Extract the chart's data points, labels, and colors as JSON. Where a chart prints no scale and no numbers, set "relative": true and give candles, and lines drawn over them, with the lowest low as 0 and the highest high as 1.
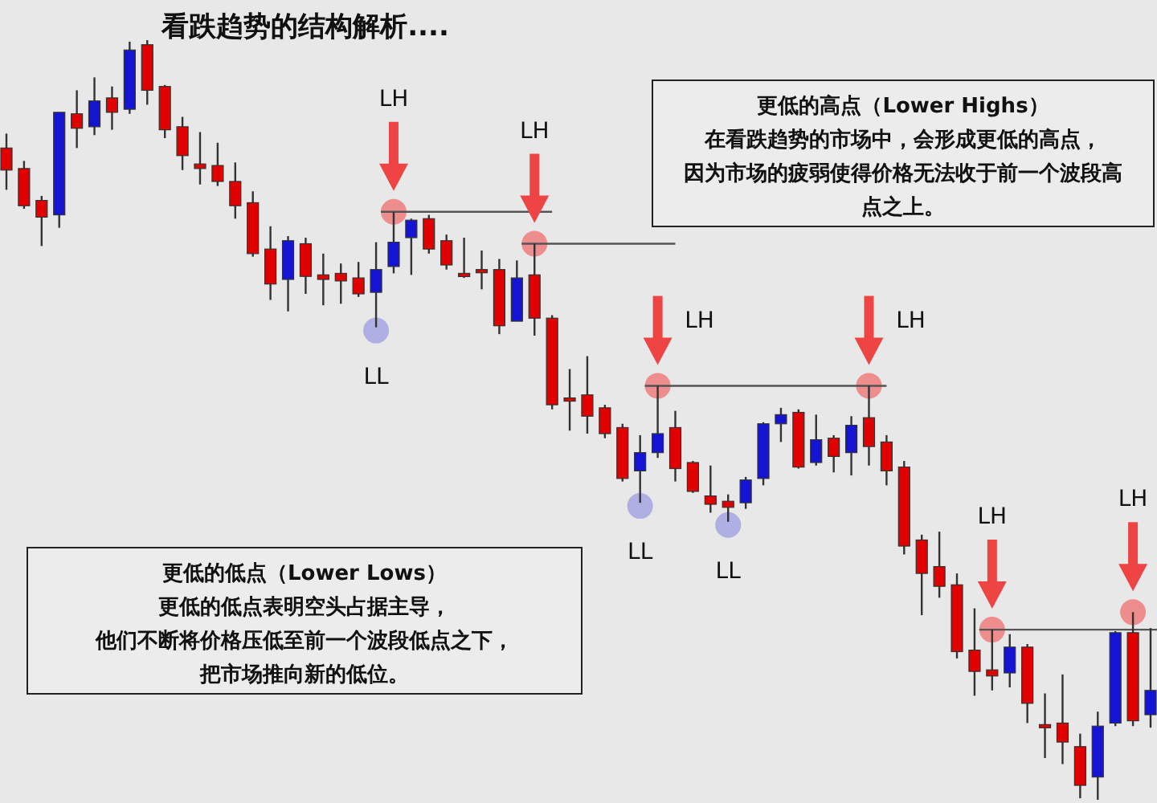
{
  "chart_data": {
    "type": "candlestick",
    "relative": true,
    "title": "看跌趋势的结构解析....",
    "categories": [
      null,
      null,
      null,
      null,
      null,
      null,
      null,
      null,
      null,
      null,
      null,
      null,
      null,
      null,
      null,
      null,
      null,
      null,
      null,
      null,
      null,
      null,
      null,
      null,
      null,
      null,
      null,
      null,
      null,
      null,
      null,
      null,
      null,
      null,
      null,
      null,
      null,
      null,
      null,
      null,
      null,
      null,
      null,
      null,
      null,
      null,
      null,
      null,
      null,
      null,
      null,
      null,
      null,
      null,
      null,
      null,
      null,
      null,
      null,
      null,
      null,
      null,
      null,
      null,
      null,
      null
    ],
    "ohlc": [
      [
        0.858,
        0.877,
        0.803,
        0.829
      ],
      [
        0.831,
        0.841,
        0.778,
        0.782
      ],
      [
        0.789,
        0.795,
        0.729,
        0.767
      ],
      [
        0.77,
        0.905,
        0.753,
        0.905
      ],
      [
        0.903,
        0.934,
        0.858,
        0.884
      ],
      [
        0.886,
        0.951,
        0.875,
        0.92
      ],
      [
        0.924,
        0.939,
        0.882,
        0.905
      ],
      [
        0.909,
        0.998,
        0.903,
        0.987
      ],
      [
        0.994,
        1.0,
        0.915,
        0.934
      ],
      [
        0.939,
        0.941,
        0.871,
        0.882
      ],
      [
        0.886,
        0.899,
        0.829,
        0.848
      ],
      [
        0.837,
        0.879,
        0.81,
        0.831
      ],
      [
        0.835,
        0.865,
        0.808,
        0.814
      ],
      [
        0.814,
        0.839,
        0.765,
        0.782
      ],
      [
        0.786,
        0.801,
        0.715,
        0.719
      ],
      [
        0.725,
        0.755,
        0.658,
        0.679
      ],
      [
        0.685,
        0.742,
        0.643,
        0.736
      ],
      [
        0.732,
        0.74,
        0.666,
        0.689
      ],
      [
        0.691,
        0.719,
        0.651,
        0.685
      ],
      [
        0.693,
        0.706,
        0.653,
        0.683
      ],
      [
        0.687,
        0.708,
        0.662,
        0.666
      ],
      [
        0.668,
        0.734,
        0.622,
        0.698
      ],
      [
        0.702,
        0.774,
        0.693,
        0.734
      ],
      [
        0.74,
        0.765,
        0.691,
        0.763
      ],
      [
        0.765,
        0.77,
        0.719,
        0.725
      ],
      [
        0.736,
        0.744,
        0.698,
        0.704
      ],
      [
        0.693,
        0.74,
        0.687,
        0.691
      ],
      [
        0.698,
        0.723,
        0.672,
        0.696
      ],
      [
        0.698,
        0.712,
        0.613,
        0.624
      ],
      [
        0.63,
        0.71,
        0.63,
        0.687
      ],
      [
        0.691,
        0.732,
        0.611,
        0.634
      ],
      [
        0.634,
        0.638,
        0.514,
        0.52
      ],
      [
        0.529,
        0.567,
        0.486,
        0.526
      ],
      [
        0.533,
        0.584,
        0.482,
        0.505
      ],
      [
        0.516,
        0.52,
        0.476,
        0.482
      ],
      [
        0.49,
        0.495,
        0.419,
        0.423
      ],
      [
        0.433,
        0.48,
        0.391,
        0.457
      ],
      [
        0.457,
        0.545,
        0.45,
        0.482
      ],
      [
        0.49,
        0.512,
        0.419,
        0.436
      ],
      [
        0.444,
        0.446,
        0.404,
        0.406
      ],
      [
        0.4,
        0.44,
        0.378,
        0.389
      ],
      [
        0.393,
        0.402,
        0.366,
        0.385
      ],
      [
        0.391,
        0.425,
        0.383,
        0.421
      ],
      [
        0.423,
        0.497,
        0.414,
        0.495
      ],
      [
        0.495,
        0.516,
        0.471,
        0.507
      ],
      [
        0.51,
        0.514,
        0.436,
        0.438
      ],
      [
        0.444,
        0.507,
        0.44,
        0.474
      ],
      [
        0.476,
        0.48,
        0.431,
        0.452
      ],
      [
        0.457,
        0.505,
        0.427,
        0.493
      ],
      [
        0.503,
        0.545,
        0.44,
        0.465
      ],
      [
        0.471,
        0.48,
        0.414,
        0.433
      ],
      [
        0.438,
        0.446,
        0.323,
        0.334
      ],
      [
        0.342,
        0.349,
        0.243,
        0.298
      ],
      [
        0.307,
        0.353,
        0.266,
        0.281
      ],
      [
        0.283,
        0.298,
        0.186,
        0.195
      ],
      [
        0.197,
        0.252,
        0.137,
        0.169
      ],
      [
        0.171,
        0.224,
        0.144,
        0.163
      ],
      [
        0.167,
        0.218,
        0.148,
        0.201
      ],
      [
        0.201,
        0.205,
        0.101,
        0.127
      ],
      [
        0.099,
        0.14,
        0.055,
        0.097
      ],
      [
        0.101,
        0.165,
        0.047,
        0.076
      ],
      [
        0.07,
        0.087,
        0.002,
        0.019
      ],
      [
        0.03,
        0.116,
        0.0,
        0.097
      ],
      [
        0.101,
        0.222,
        0.097,
        0.22
      ],
      [
        0.22,
        0.247,
        0.097,
        0.104
      ],
      [
        0.112,
        0.226,
        0.095,
        0.144
      ]
    ],
    "colors": [
      "#e00000",
      "#e00000",
      "#e00000",
      "#1414d2",
      "#e00000",
      "#1414d2",
      "#e00000",
      "#1414d2",
      "#e00000",
      "#e00000",
      "#e00000",
      "#e00000",
      "#e00000",
      "#e00000",
      "#e00000",
      "#e00000",
      "#1414d2",
      "#e00000",
      "#e00000",
      "#e00000",
      "#e00000",
      "#1414d2",
      "#1414d2",
      "#1414d2",
      "#e00000",
      "#e00000",
      "#e00000",
      "#e00000",
      "#e00000",
      "#1414d2",
      "#e00000",
      "#e00000",
      "#e00000",
      "#e00000",
      "#e00000",
      "#e00000",
      "#1414d2",
      "#1414d2",
      "#e00000",
      "#e00000",
      "#e00000",
      "#e00000",
      "#1414d2",
      "#1414d2",
      "#1414d2",
      "#e00000",
      "#1414d2",
      "#e00000",
      "#1414d2",
      "#e00000",
      "#e00000",
      "#e00000",
      "#e00000",
      "#e00000",
      "#e00000",
      "#e00000",
      "#e00000",
      "#1414d2",
      "#e00000",
      "#e00000",
      "#e00000",
      "#e00000",
      "#1414d2",
      "#1414d2",
      "#e00000",
      "#1414d2"
    ],
    "ref_lines": [
      {
        "axis": "y",
        "value": 0.774,
        "color": "#555555"
      },
      {
        "axis": "y",
        "value": 0.732,
        "color": "#555555"
      },
      {
        "axis": "y",
        "value": 0.545,
        "color": "#555555"
      },
      {
        "axis": "y",
        "value": 0.224,
        "color": "#555555"
      }
    ],
    "annotations": [
      "LH",
      "LH",
      "LH",
      "LH",
      "LH",
      "LH",
      "LL",
      "LL",
      "LL",
      "更低的高点（Lower Highs）",
      "在看跌趋势的市场中，会形成更低的高点，因为市场的疲弱使得价格无法收于前一个波段高点之上。",
      "更低的低点（Lower Lows）",
      "更低的低点表明空头占据主导，他们不断将价格压低至前一个波段低点之下，把市场推向新的低位。"
    ]
  }
}
